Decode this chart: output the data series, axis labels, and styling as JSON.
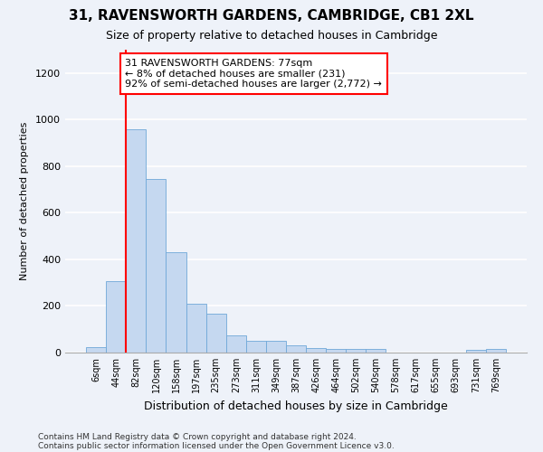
{
  "title1": "31, RAVENSWORTH GARDENS, CAMBRIDGE, CB1 2XL",
  "title2": "Size of property relative to detached houses in Cambridge",
  "xlabel": "Distribution of detached houses by size in Cambridge",
  "ylabel": "Number of detached properties",
  "bin_labels": [
    "6sqm",
    "44sqm",
    "82sqm",
    "120sqm",
    "158sqm",
    "197sqm",
    "235sqm",
    "273sqm",
    "311sqm",
    "349sqm",
    "387sqm",
    "426sqm",
    "464sqm",
    "502sqm",
    "540sqm",
    "578sqm",
    "617sqm",
    "655sqm",
    "693sqm",
    "731sqm",
    "769sqm"
  ],
  "bar_heights": [
    25,
    305,
    960,
    745,
    430,
    210,
    165,
    75,
    50,
    50,
    32,
    20,
    15,
    15,
    15,
    0,
    0,
    0,
    0,
    13,
    15
  ],
  "bar_color": "#c5d8f0",
  "bar_edge_color": "#6fa8d8",
  "annotation_text": "31 RAVENSWORTH GARDENS: 77sqm\n← 8% of detached houses are smaller (231)\n92% of semi-detached houses are larger (2,772) →",
  "ylim": [
    0,
    1300
  ],
  "yticks": [
    0,
    200,
    400,
    600,
    800,
    1000,
    1200
  ],
  "footnote1": "Contains HM Land Registry data © Crown copyright and database right 2024.",
  "footnote2": "Contains public sector information licensed under the Open Government Licence v3.0.",
  "fig_width": 6.0,
  "fig_height": 5.0,
  "dpi": 100,
  "background_color": "#eef2f9",
  "red_line_bin": 2
}
